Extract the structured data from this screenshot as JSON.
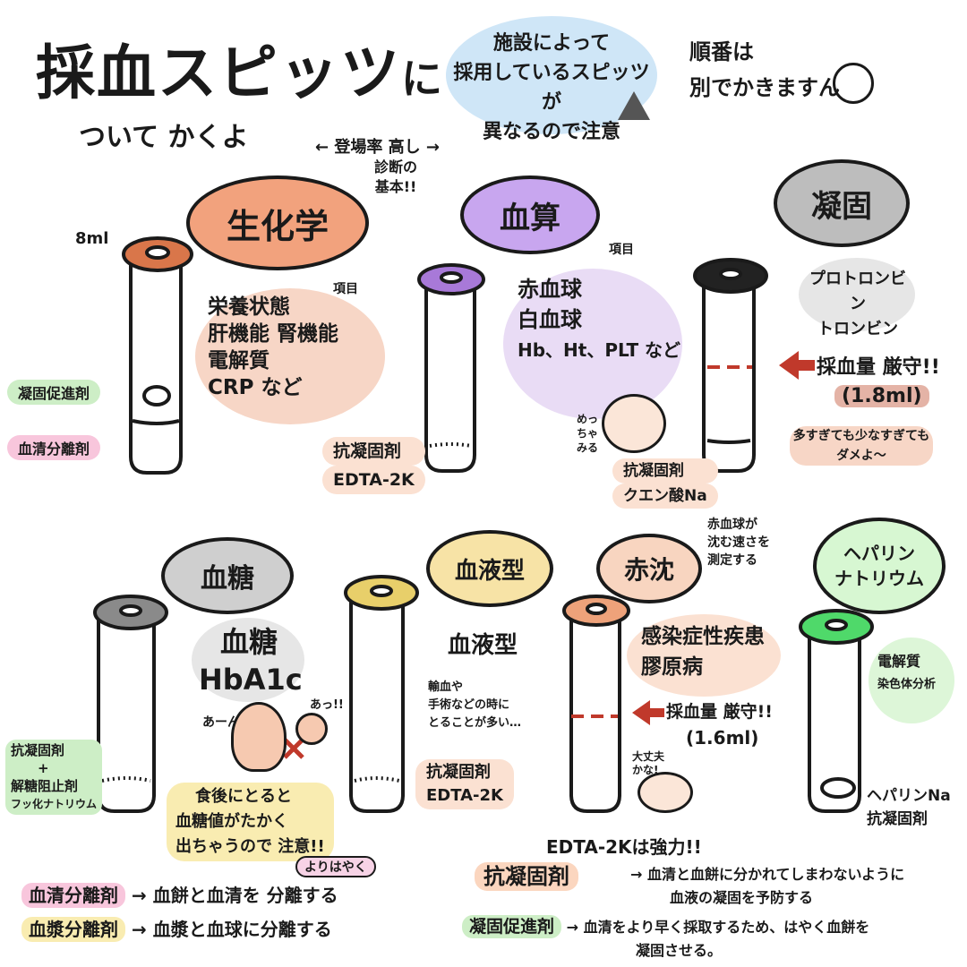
{
  "header": {
    "title": "採血スピッツ",
    "title_suffix": "に",
    "subtitle": "ついて かくよ",
    "note_lines": [
      "施設によって",
      "採用しているスピッツが",
      "異なるので注意"
    ],
    "order_note_lines": [
      "順番は",
      "別でかきますん"
    ],
    "frequency_note": "← 登場率 高し →",
    "diagnosis_note_lines": [
      "診断の",
      "基本!!"
    ]
  },
  "tubes": {
    "biochem": {
      "label": "生化学",
      "volume": "8ml",
      "items_tag": "項目",
      "items": [
        "栄養状態",
        "肝機能 腎機能",
        "電解質",
        "CRP など"
      ],
      "additive1": "凝固促進剤",
      "additive2": "血清分離剤"
    },
    "cbc": {
      "label": "血算",
      "items_tag": "項目",
      "items": [
        "赤血球",
        "白血球",
        "Hb、Ht、PLT など"
      ],
      "additive_lines": [
        "抗凝固剤",
        "EDTA-2K"
      ],
      "eyes_note_lines": [
        "めっ",
        "ちゃ",
        "みる"
      ]
    },
    "coag": {
      "label": "凝固",
      "items": [
        "プロトロンビン",
        "トロンビン"
      ],
      "strict": "採血量 厳守!!",
      "amount": "(1.8ml)",
      "warning_lines": [
        "多すぎても少なすぎても",
        "ダメよ〜"
      ],
      "additive_lines": [
        "抗凝固剤",
        "クエン酸Na"
      ]
    },
    "glucose": {
      "label": "血糖",
      "items": [
        "血糖",
        "HbA1c"
      ],
      "additive_lines": [
        "抗凝固剤",
        "+",
        "解糖阻止剤",
        "フッ化ナトリウム"
      ],
      "note_lines": [
        "食後にとると",
        "血糖値がたかく",
        "出ちゃうので 注意!!"
      ],
      "exclaim_a": "あーん",
      "exclaim_b": "あっ!!"
    },
    "blood_type": {
      "label": "血液型",
      "items": [
        "血液型"
      ],
      "note_lines": [
        "輸血や",
        "手術などの時に",
        "とることが多い…"
      ],
      "additive_lines": [
        "抗凝固剤",
        "EDTA-2K"
      ]
    },
    "esr": {
      "label": "赤沈",
      "speed_note_lines": [
        "赤血球が",
        "沈む速さを",
        "測定する"
      ],
      "items": [
        "感染症性疾患",
        "膠原病"
      ],
      "strict": "採血量 厳守!!",
      "amount": "(1.6ml)",
      "ok_note_lines": [
        "大丈夫",
        "かな!"
      ]
    },
    "heparin": {
      "label_lines": [
        "ヘパリン",
        "ナトリウム"
      ],
      "items": [
        "電解質",
        "染色体分析"
      ],
      "additive_lines": [
        "ヘパリンNa",
        "抗凝固剤"
      ]
    }
  },
  "legend": {
    "fast_tag": "よりはやく",
    "serum_sep": "血清分離剤",
    "serum_sep_desc": "→ 血餅と血清を 分離する",
    "plasma_sep": "血漿分離剤",
    "plasma_sep_desc": "→ 血漿と血球に分離する",
    "edta_note": "EDTA-2Kは強力!!",
    "anticoag": "抗凝固剤",
    "anticoag_desc_lines": [
      "→ 血清と血餅に分かれてしまわないように",
      "血液の凝固を予防する"
    ],
    "coag_promoter": "凝固促進剤",
    "coag_promoter_desc_lines": [
      "→ 血清をより早く採取するため、はやく血餅を",
      "凝固させる。"
    ]
  },
  "colors": {
    "biochem_cap": "#d9764a",
    "cbc_cap": "#a879d8",
    "coag_cap": "#222222",
    "glucose_cap": "#8a8a8a",
    "bloodtype_cap": "#e8cf6a",
    "esr_cap": "#eea27a",
    "heparin_cap": "#4fd96a",
    "accent_red": "#c0392b"
  }
}
